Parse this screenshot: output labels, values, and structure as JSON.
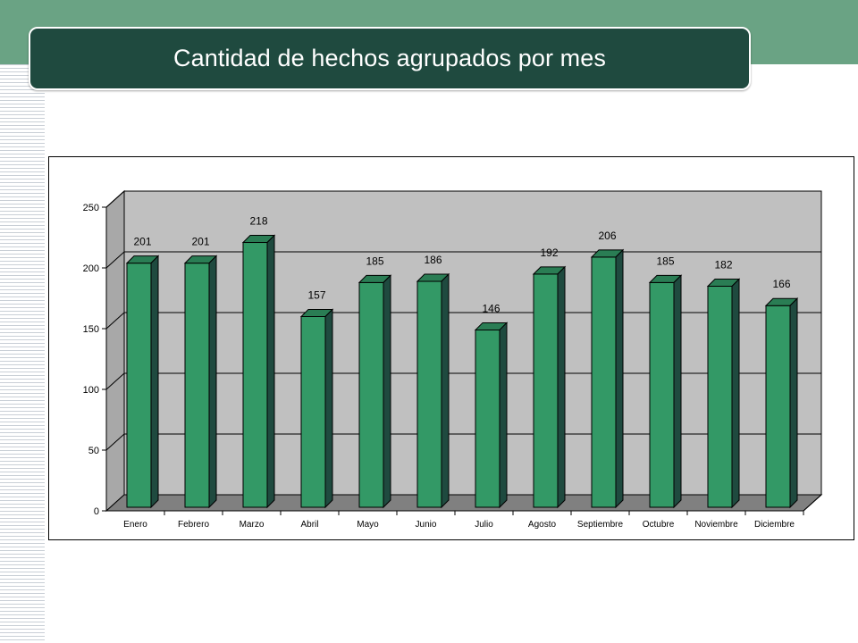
{
  "slide": {
    "title": "Cantidad de hechos agrupados por mes"
  },
  "colors": {
    "header_band": "#6aa384",
    "title_banner": "#1f4a3f",
    "bar_front": "#339966",
    "bar_top": "#2a7d54",
    "bar_side": "#1f4a3f",
    "plot_back": "#c0c0c0",
    "plot_floor": "#808080"
  },
  "chart_data": {
    "type": "bar",
    "style": "3d-column",
    "categories": [
      "Enero",
      "Febrero",
      "Marzo",
      "Abril",
      "Mayo",
      "Junio",
      "Julio",
      "Agosto",
      "Septiembre",
      "Octubre",
      "Noviembre",
      "Diciembre"
    ],
    "values": [
      201,
      201,
      218,
      157,
      185,
      186,
      146,
      192,
      206,
      185,
      182,
      166
    ],
    "yticks": [
      "0",
      "50",
      "100",
      "150",
      "200",
      "250"
    ],
    "ylim": [
      0,
      250
    ],
    "grid": true,
    "legend": "none"
  }
}
